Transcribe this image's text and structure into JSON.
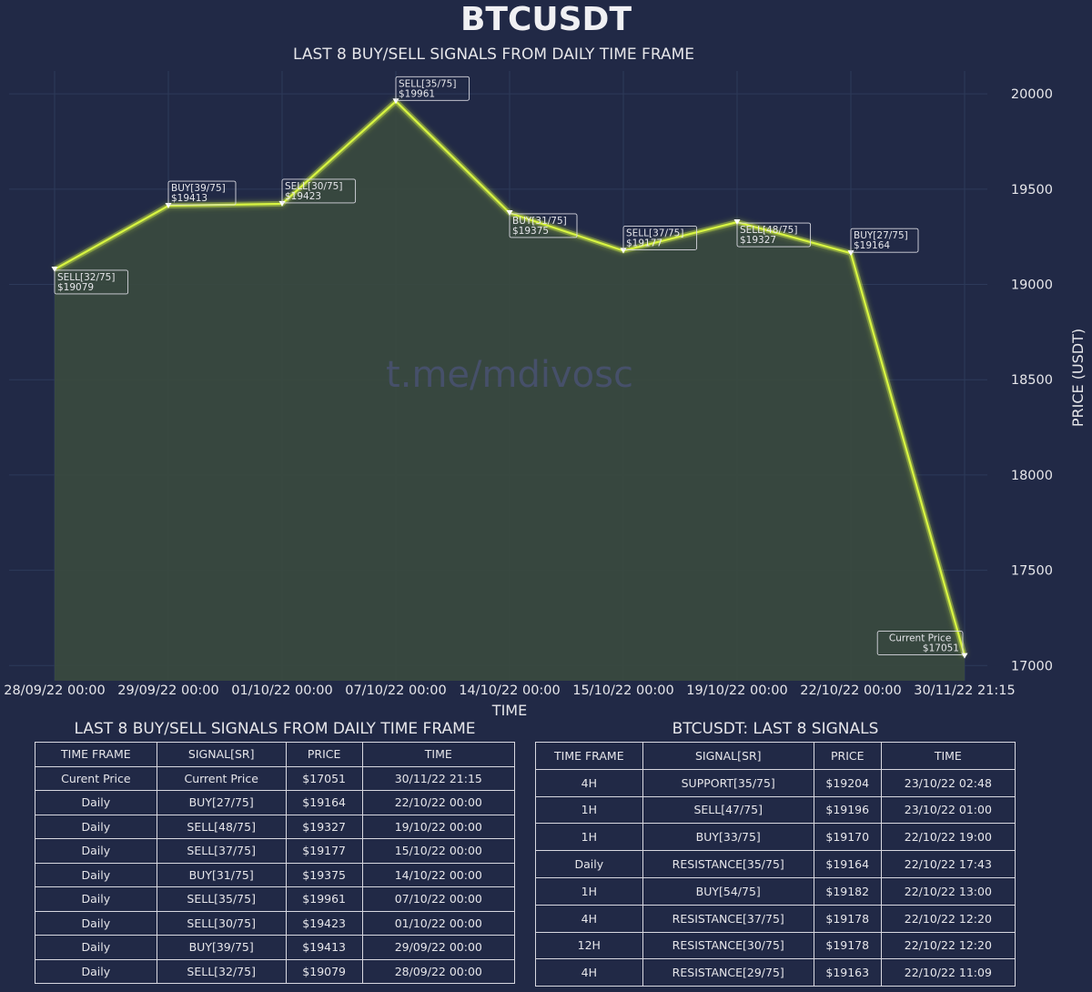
{
  "title": "BTCUSDT",
  "subtitle": "LAST 8 BUY/SELL SIGNALS FROM DAILY TIME FRAME",
  "watermark": "t.me/mdivosc",
  "colors": {
    "background": "#212946",
    "line": "#d8f542",
    "fill": "#3a4a3e",
    "grid": "#2d3a5a",
    "text": "#e6e6ea"
  },
  "chart_data": {
    "type": "line",
    "xlabel": "TIME",
    "ylabel": "PRICE (USDT)",
    "ylim": [
      16920,
      20120
    ],
    "yticks": [
      17000,
      17500,
      18000,
      18500,
      19000,
      19500,
      20000
    ],
    "grid": true,
    "categories": [
      "28/09/22 00:00",
      "29/09/22 00:00",
      "01/10/22 00:00",
      "07/10/22 00:00",
      "14/10/22 00:00",
      "15/10/22 00:00",
      "19/10/22 00:00",
      "22/10/22 00:00",
      "30/11/22 21:15"
    ],
    "values": [
      19079,
      19413,
      19423,
      19961,
      19375,
      19177,
      19327,
      19164,
      17051
    ],
    "annotations": [
      {
        "signal": "SELL[32/75]",
        "price": "$19079",
        "side": "below"
      },
      {
        "signal": "BUY[39/75]",
        "price": "$19413",
        "side": "above"
      },
      {
        "signal": "SELL[30/75]",
        "price": "$19423",
        "side": "above"
      },
      {
        "signal": "SELL[35/75]",
        "price": "$19961",
        "side": "above"
      },
      {
        "signal": "BUY[31/75]",
        "price": "$19375",
        "side": "below"
      },
      {
        "signal": "SELL[37/75]",
        "price": "$19177",
        "side": "above"
      },
      {
        "signal": "SELL[48/75]",
        "price": "$19327",
        "side": "below"
      },
      {
        "signal": "BUY[27/75]",
        "price": "$19164",
        "side": "above"
      },
      {
        "signal": "Current Price",
        "price": "$17051",
        "side": "above-left"
      }
    ]
  },
  "left_table": {
    "title": "LAST 8 BUY/SELL SIGNALS FROM DAILY TIME FRAME",
    "headers": [
      "TIME FRAME",
      "SIGNAL[SR]",
      "PRICE",
      "TIME"
    ],
    "rows": [
      [
        "Curent Price",
        "Current Price",
        "$17051",
        "30/11/22 21:15"
      ],
      [
        "Daily",
        "BUY[27/75]",
        "$19164",
        "22/10/22 00:00"
      ],
      [
        "Daily",
        "SELL[48/75]",
        "$19327",
        "19/10/22 00:00"
      ],
      [
        "Daily",
        "SELL[37/75]",
        "$19177",
        "15/10/22 00:00"
      ],
      [
        "Daily",
        "BUY[31/75]",
        "$19375",
        "14/10/22 00:00"
      ],
      [
        "Daily",
        "SELL[35/75]",
        "$19961",
        "07/10/22 00:00"
      ],
      [
        "Daily",
        "SELL[30/75]",
        "$19423",
        "01/10/22 00:00"
      ],
      [
        "Daily",
        "BUY[39/75]",
        "$19413",
        "29/09/22 00:00"
      ],
      [
        "Daily",
        "SELL[32/75]",
        "$19079",
        "28/09/22 00:00"
      ]
    ]
  },
  "right_table": {
    "title": "BTCUSDT: LAST 8 SIGNALS",
    "headers": [
      "TIME FRAME",
      "SIGNAL[SR]",
      "PRICE",
      "TIME"
    ],
    "rows": [
      [
        "4H",
        "SUPPORT[35/75]",
        "$19204",
        "23/10/22 02:48"
      ],
      [
        "1H",
        "SELL[47/75]",
        "$19196",
        "23/10/22 01:00"
      ],
      [
        "1H",
        "BUY[33/75]",
        "$19170",
        "22/10/22 19:00"
      ],
      [
        "Daily",
        "RESISTANCE[35/75]",
        "$19164",
        "22/10/22 17:43"
      ],
      [
        "1H",
        "BUY[54/75]",
        "$19182",
        "22/10/22 13:00"
      ],
      [
        "4H",
        "RESISTANCE[37/75]",
        "$19178",
        "22/10/22 12:20"
      ],
      [
        "12H",
        "RESISTANCE[30/75]",
        "$19178",
        "22/10/22 12:20"
      ],
      [
        "4H",
        "RESISTANCE[29/75]",
        "$19163",
        "22/10/22 11:09"
      ]
    ]
  }
}
